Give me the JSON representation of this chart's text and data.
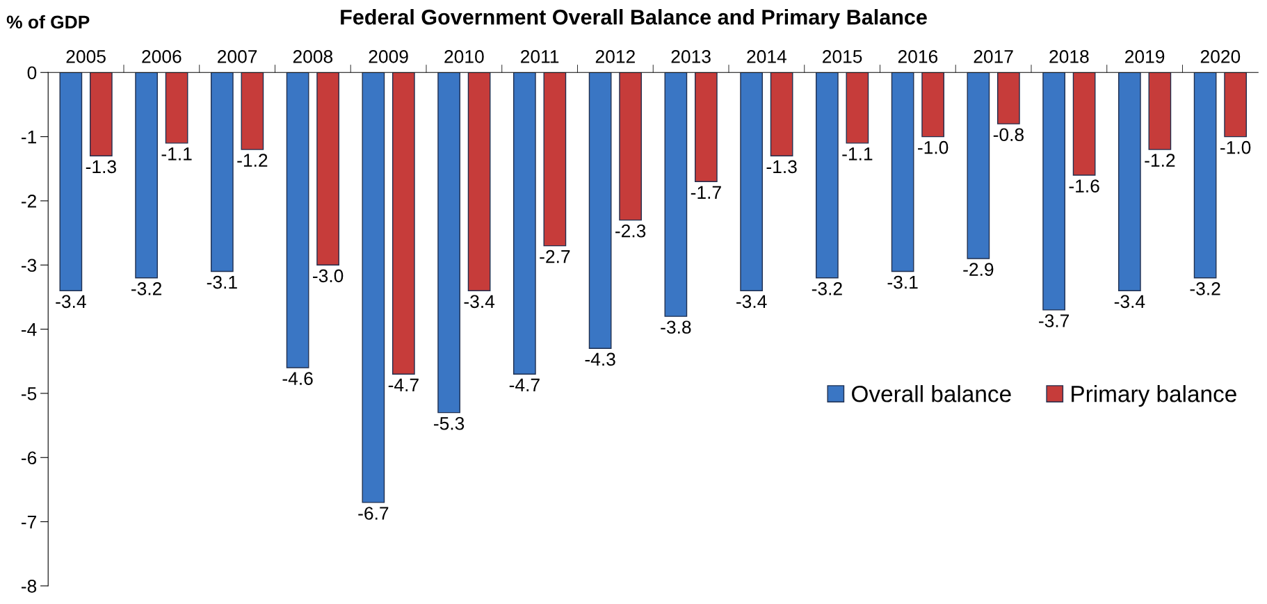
{
  "chart_data": {
    "type": "bar",
    "title": "Federal Government Overall Balance and Primary Balance",
    "ylabel": "% of GDP",
    "categories": [
      "2005",
      "2006",
      "2007",
      "2008",
      "2009",
      "2010",
      "2011",
      "2012",
      "2013",
      "2014",
      "2015",
      "2016",
      "2017",
      "2018",
      "2019",
      "2020"
    ],
    "series": [
      {
        "name": "Overall balance",
        "color": "#3a76c4",
        "values": [
          -3.4,
          -3.2,
          -3.1,
          -4.6,
          -6.7,
          -5.3,
          -4.7,
          -4.3,
          -3.8,
          -3.4,
          -3.2,
          -3.1,
          -2.9,
          -3.7,
          -3.4,
          -3.2
        ],
        "value_labels": [
          "-3.4",
          "-3.2",
          "-3.1",
          "-4.6",
          "-6.7",
          "-5.3",
          "-4.7",
          "-4.3",
          "-3.8",
          "-3.4",
          "-3.2",
          "-3.1",
          "-2.9",
          "-3.7",
          "-3.4",
          "-3.2"
        ]
      },
      {
        "name": "Primary balance",
        "color": "#c63c3a",
        "values": [
          -1.3,
          -1.1,
          -1.2,
          -3.0,
          -4.7,
          -3.4,
          -2.7,
          -2.3,
          -1.7,
          -1.3,
          -1.1,
          -1.0,
          -0.8,
          -1.6,
          -1.2,
          -1.0
        ],
        "value_labels": [
          "-1.3",
          "-1.1",
          "-1.2",
          "-3.0",
          "-4.7",
          "-3.4",
          "-2.7",
          "-2.3",
          "-1.7",
          "-1.3",
          "-1.1",
          "-1.0",
          "-0.8",
          "-1.6",
          "-1.2",
          "-1.0"
        ]
      }
    ],
    "ylim": [
      -8,
      0
    ],
    "yticks": [
      0,
      -1,
      -2,
      -3,
      -4,
      -5,
      -6,
      -7,
      -8
    ],
    "grid": false,
    "legend": "center right"
  }
}
